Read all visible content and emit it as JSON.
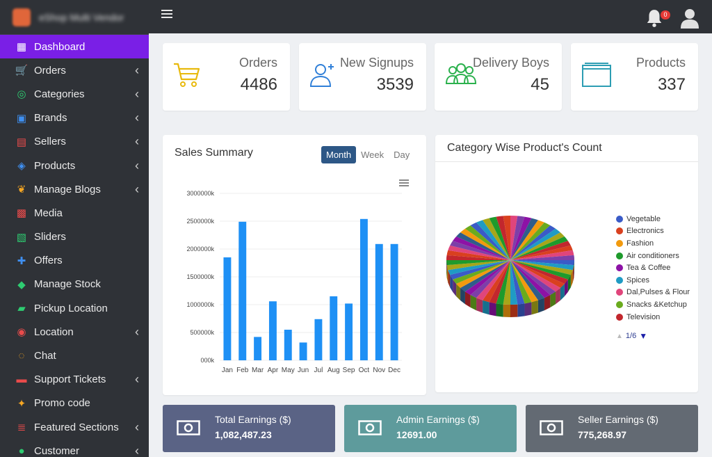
{
  "brand": {
    "name": "eShop Multi Vendor"
  },
  "sidebar": {
    "items": [
      {
        "label": "Dashboard",
        "icon": "grid-icon",
        "color": "#ffffff",
        "caret": false,
        "active": true
      },
      {
        "label": "Orders",
        "icon": "cart-icon",
        "color": "#f5a623",
        "caret": true
      },
      {
        "label": "Categories",
        "icon": "target-icon",
        "color": "#2ecc71",
        "caret": true
      },
      {
        "label": "Brands",
        "icon": "id-card-icon",
        "color": "#3f8ff0",
        "caret": true
      },
      {
        "label": "Sellers",
        "icon": "store-icon",
        "color": "#e84b4b",
        "caret": true
      },
      {
        "label": "Products",
        "icon": "cubes-icon",
        "color": "#3f8ff0",
        "caret": true
      },
      {
        "label": "Manage Blogs",
        "icon": "blog-icon",
        "color": "#f5a623",
        "caret": true
      },
      {
        "label": "Media",
        "icon": "photo-icon",
        "color": "#e84b4b",
        "caret": false
      },
      {
        "label": "Sliders",
        "icon": "image-icon",
        "color": "#2ecc71",
        "caret": false
      },
      {
        "label": "Offers",
        "icon": "gift-icon",
        "color": "#3f8ff0",
        "caret": false
      },
      {
        "label": "Manage Stock",
        "icon": "box-icon",
        "color": "#2ecc71",
        "caret": false
      },
      {
        "label": "Pickup Location",
        "icon": "truck-icon",
        "color": "#2ecc71",
        "caret": false
      },
      {
        "label": "Location",
        "icon": "map-icon",
        "color": "#e84b4b",
        "caret": true
      },
      {
        "label": "Chat",
        "icon": "chat-icon",
        "color": "#f5a623",
        "caret": false
      },
      {
        "label": "Support Tickets",
        "icon": "ticket-icon",
        "color": "#e84b4b",
        "caret": true
      },
      {
        "label": "Promo code",
        "icon": "puzzle-icon",
        "color": "#f5a623",
        "caret": false
      },
      {
        "label": "Featured Sections",
        "icon": "layers-icon",
        "color": "#e84b4b",
        "caret": true
      },
      {
        "label": "Customer",
        "icon": "person-icon",
        "color": "#2ecc71",
        "caret": true
      }
    ]
  },
  "topbar": {
    "notification_count": "0"
  },
  "stats": [
    {
      "label": "Orders",
      "value": "4486",
      "icon": "cart-icon",
      "color": "#e8b90c"
    },
    {
      "label": "New Signups",
      "value": "3539",
      "icon": "user-plus-icon",
      "color": "#2f7fd8"
    },
    {
      "label": "Delivery Boys",
      "value": "45",
      "icon": "users-icon",
      "color": "#2bb14d"
    },
    {
      "label": "Products",
      "value": "337",
      "icon": "folder-icon",
      "color": "#2c9db3"
    }
  ],
  "sales": {
    "title": "Sales Summary",
    "tabs": [
      "Month",
      "Week",
      "Day"
    ],
    "active_tab": "Month"
  },
  "chart_data": {
    "type": "bar",
    "categories": [
      "Jan",
      "Feb",
      "Mar",
      "Apr",
      "May",
      "Jun",
      "Jul",
      "Aug",
      "Sep",
      "Oct",
      "Nov",
      "Dec"
    ],
    "values": [
      1850000,
      2490000,
      420000,
      1060000,
      550000,
      320000,
      740000,
      1150000,
      1020000,
      2540000,
      2090000,
      2090000
    ],
    "yticks": [
      0,
      500000,
      1000000,
      1500000,
      2000000,
      2500000,
      3000000
    ],
    "ytick_labels": [
      "000k",
      "500000k",
      "1000000k",
      "1500000k",
      "2000000k",
      "2500000k",
      "3000000k"
    ],
    "ylim": [
      0,
      3000000
    ],
    "color": "#1e90f5",
    "grid": true
  },
  "category": {
    "title": "Category Wise Product's Count",
    "legend": [
      {
        "label": "Vegetable",
        "color": "#3a5bc7"
      },
      {
        "label": "Electronics",
        "color": "#d9401f"
      },
      {
        "label": "Fashion",
        "color": "#f29a0e"
      },
      {
        "label": "Air conditioners",
        "color": "#1e9a2c"
      },
      {
        "label": "Tea & Coffee",
        "color": "#8d12a6"
      },
      {
        "label": "Spices",
        "color": "#1f9bc4"
      },
      {
        "label": "Dal,Pulses & Flour",
        "color": "#e0457b"
      },
      {
        "label": "Snacks &Ketchup",
        "color": "#6aab1e"
      },
      {
        "label": "Television",
        "color": "#c2272d"
      }
    ],
    "page": "1/6",
    "slice_colors": [
      "#3a5bc7",
      "#d9401f",
      "#f29a0e",
      "#1e9a2c",
      "#8d12a6",
      "#1f9bc4",
      "#e0457b",
      "#6aab1e",
      "#c2272d",
      "#2f5d8a",
      "#a6a61a",
      "#7d3fa8"
    ]
  },
  "earnings": [
    {
      "label": "Total Earnings ($)",
      "value": "1,082,487.23",
      "color": "#5a6385"
    },
    {
      "label": "Admin Earnings ($)",
      "value": "12691.00",
      "color": "#5e9b9c"
    },
    {
      "label": "Seller Earnings ($)",
      "value": "775,268.97",
      "color": "#636a73"
    }
  ]
}
